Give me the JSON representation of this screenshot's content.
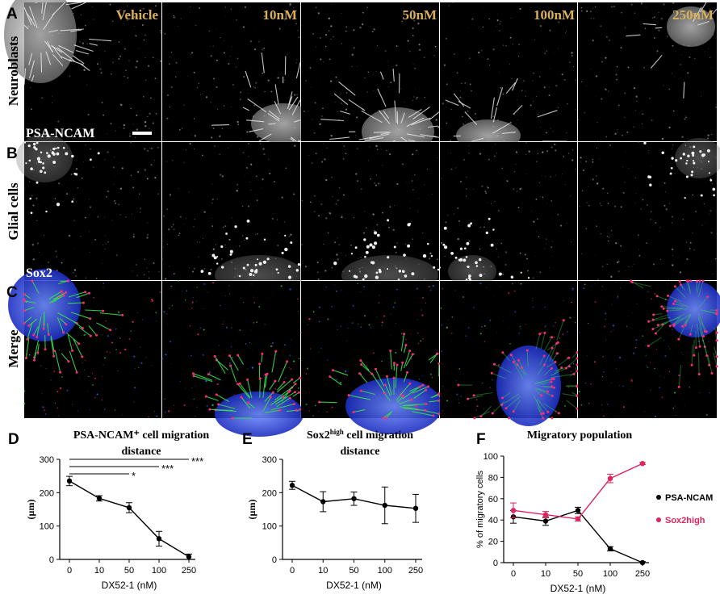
{
  "panel_letters": [
    "A",
    "B",
    "C",
    "D",
    "E",
    "F"
  ],
  "row_labels": [
    "Neuroblasts",
    "Glial cells",
    "Merge"
  ],
  "column_labels": [
    "Vehicle",
    "10nM",
    "50nM",
    "100nM",
    "250nM"
  ],
  "stain_labels": {
    "row_a": "PSA-NCAM",
    "row_b": "Sox2"
  },
  "label_color": "#d9b15a",
  "chart_data": [
    {
      "type": "line",
      "panel": "D",
      "title": "PSA-NCAM⁺ cell migration distance",
      "xlabel": "DX52-1 (nM)",
      "ylabel": "(µm)",
      "categories": [
        "0",
        "10",
        "50",
        "100",
        "250"
      ],
      "ylim": [
        0,
        300
      ],
      "yticks": [
        0,
        100,
        200,
        300
      ],
      "series": [
        {
          "values": [
            235,
            183,
            155,
            62,
            8
          ],
          "errors": [
            14,
            8,
            15,
            22,
            8
          ],
          "color": "#000000"
        }
      ],
      "significance": [
        {
          "from": "0",
          "to": "250",
          "label": "***"
        },
        {
          "from": "0",
          "to": "100",
          "label": "***"
        },
        {
          "from": "0",
          "to": "50",
          "label": "*"
        }
      ]
    },
    {
      "type": "line",
      "panel": "E",
      "title": "Sox2high cell migration distance",
      "xlabel": "DX52-1 (nM)",
      "ylabel": "(µm)",
      "categories": [
        "0",
        "10",
        "50",
        "100",
        "250"
      ],
      "ylim": [
        0,
        300
      ],
      "yticks": [
        0,
        100,
        200,
        300
      ],
      "series": [
        {
          "values": [
            222,
            173,
            182,
            162,
            153
          ],
          "errors": [
            12,
            30,
            20,
            55,
            42
          ],
          "color": "#000000"
        }
      ]
    },
    {
      "type": "line",
      "panel": "F",
      "title": "Migratory population",
      "xlabel": "DX52-1 (nM)",
      "ylabel": "% of migratory cells",
      "categories": [
        "0",
        "10",
        "50",
        "100",
        "250"
      ],
      "ylim": [
        0,
        100
      ],
      "yticks": [
        0,
        20,
        40,
        60,
        80,
        100
      ],
      "legend": "right",
      "series": [
        {
          "name": "PSA-NCAM",
          "values": [
            43,
            39,
            49,
            13,
            0
          ],
          "errors": [
            6,
            4,
            3,
            2,
            1
          ],
          "color": "#000000"
        },
        {
          "name": "Sox2high",
          "values": [
            49,
            45,
            41,
            79,
            93
          ],
          "errors": [
            7,
            3,
            2,
            4,
            1
          ],
          "color": "#e0245e"
        }
      ]
    }
  ]
}
